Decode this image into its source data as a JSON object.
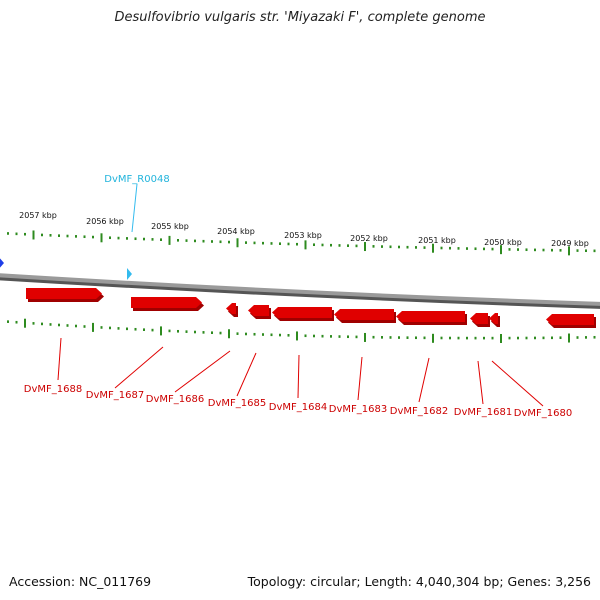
{
  "title": "Desulfovibrio vulgaris str. 'Miyazaki F', complete genome",
  "footer": {
    "accession": "Accession: NC_011769",
    "summary": "Topology: circular; Length: 4,040,304 bp; Genes: 3,256"
  },
  "colors": {
    "gene": "#e00000",
    "gene_shadow": "#a00000",
    "rna": "#33bbee",
    "marker": "#1e3ee8",
    "ticks": "#2e8b1f",
    "backbone": "#888888"
  },
  "kbp_ticks": [
    "2057 kbp",
    "2056 kbp",
    "2055 kbp",
    "2054 kbp",
    "2053 kbp",
    "2052 kbp",
    "2051 kbp",
    "2050 kbp",
    "2049 kbp"
  ],
  "genes": [
    "DvMF_1688",
    "DvMF_1687",
    "DvMF_1686",
    "DvMF_1685",
    "DvMF_1684",
    "DvMF_1683",
    "DvMF_1682",
    "DvMF_1681",
    "DvMF_1680"
  ],
  "rna_label": "DvMF_R0048"
}
